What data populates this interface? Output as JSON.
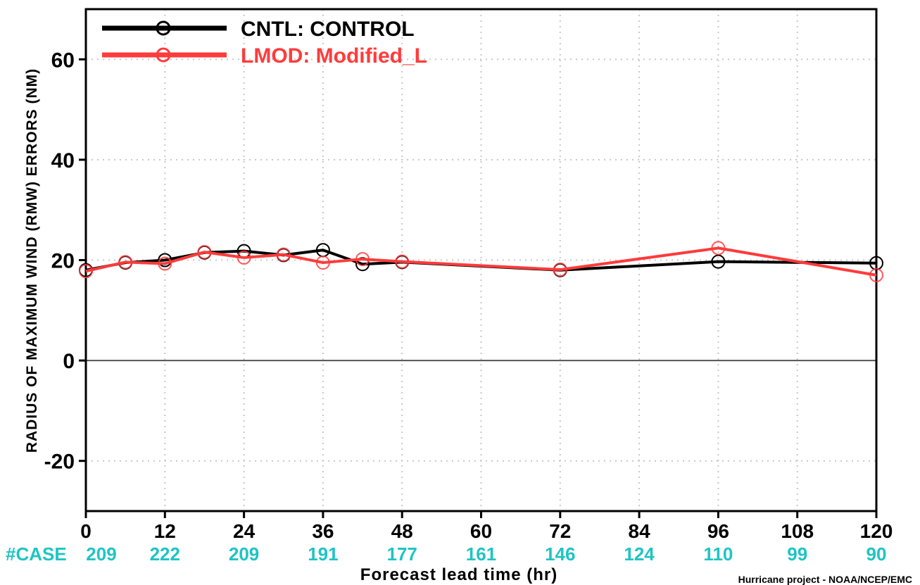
{
  "chart_data": {
    "type": "line",
    "xlabel": "Forecast lead time (hr)",
    "ylabel": "RADIUS OF MAXIMUM WIND (RMW) ERRORS (NM)",
    "xlim": [
      0,
      120
    ],
    "ylim": [
      -30,
      70
    ],
    "x_ticks": [
      0,
      12,
      24,
      36,
      48,
      60,
      72,
      84,
      96,
      108,
      120
    ],
    "y_ticks": [
      -20,
      0,
      20,
      40,
      60
    ],
    "grid": true,
    "legend_position": "top-left",
    "case_label": "#CASE",
    "case_counts": [
      209,
      222,
      209,
      191,
      177,
      161,
      146,
      124,
      110,
      99,
      90
    ],
    "credit": "Hurricane project - NOAA/NCEP/EMC",
    "series": [
      {
        "name": "CNTL: CONTROL",
        "color": "#000000",
        "points": [
          [
            0,
            18
          ],
          [
            6,
            19.5
          ],
          [
            12,
            20
          ],
          [
            18,
            21.5
          ],
          [
            24,
            21.8
          ],
          [
            30,
            21
          ],
          [
            36,
            22
          ],
          [
            42,
            19.2
          ],
          [
            48,
            19.6
          ],
          [
            72,
            18
          ],
          [
            96,
            19.7
          ],
          [
            120,
            19.4
          ]
        ]
      },
      {
        "name": "LMOD: Modified_L",
        "color": "#ff3b3b",
        "points": [
          [
            0,
            17.8
          ],
          [
            6,
            19.6
          ],
          [
            12,
            19.3
          ],
          [
            18,
            21.6
          ],
          [
            24,
            20.5
          ],
          [
            30,
            21.1
          ],
          [
            36,
            19.5
          ],
          [
            42,
            20.2
          ],
          [
            48,
            19.7
          ],
          [
            72,
            18.1
          ],
          [
            96,
            22.4
          ],
          [
            120,
            17
          ]
        ]
      }
    ]
  }
}
